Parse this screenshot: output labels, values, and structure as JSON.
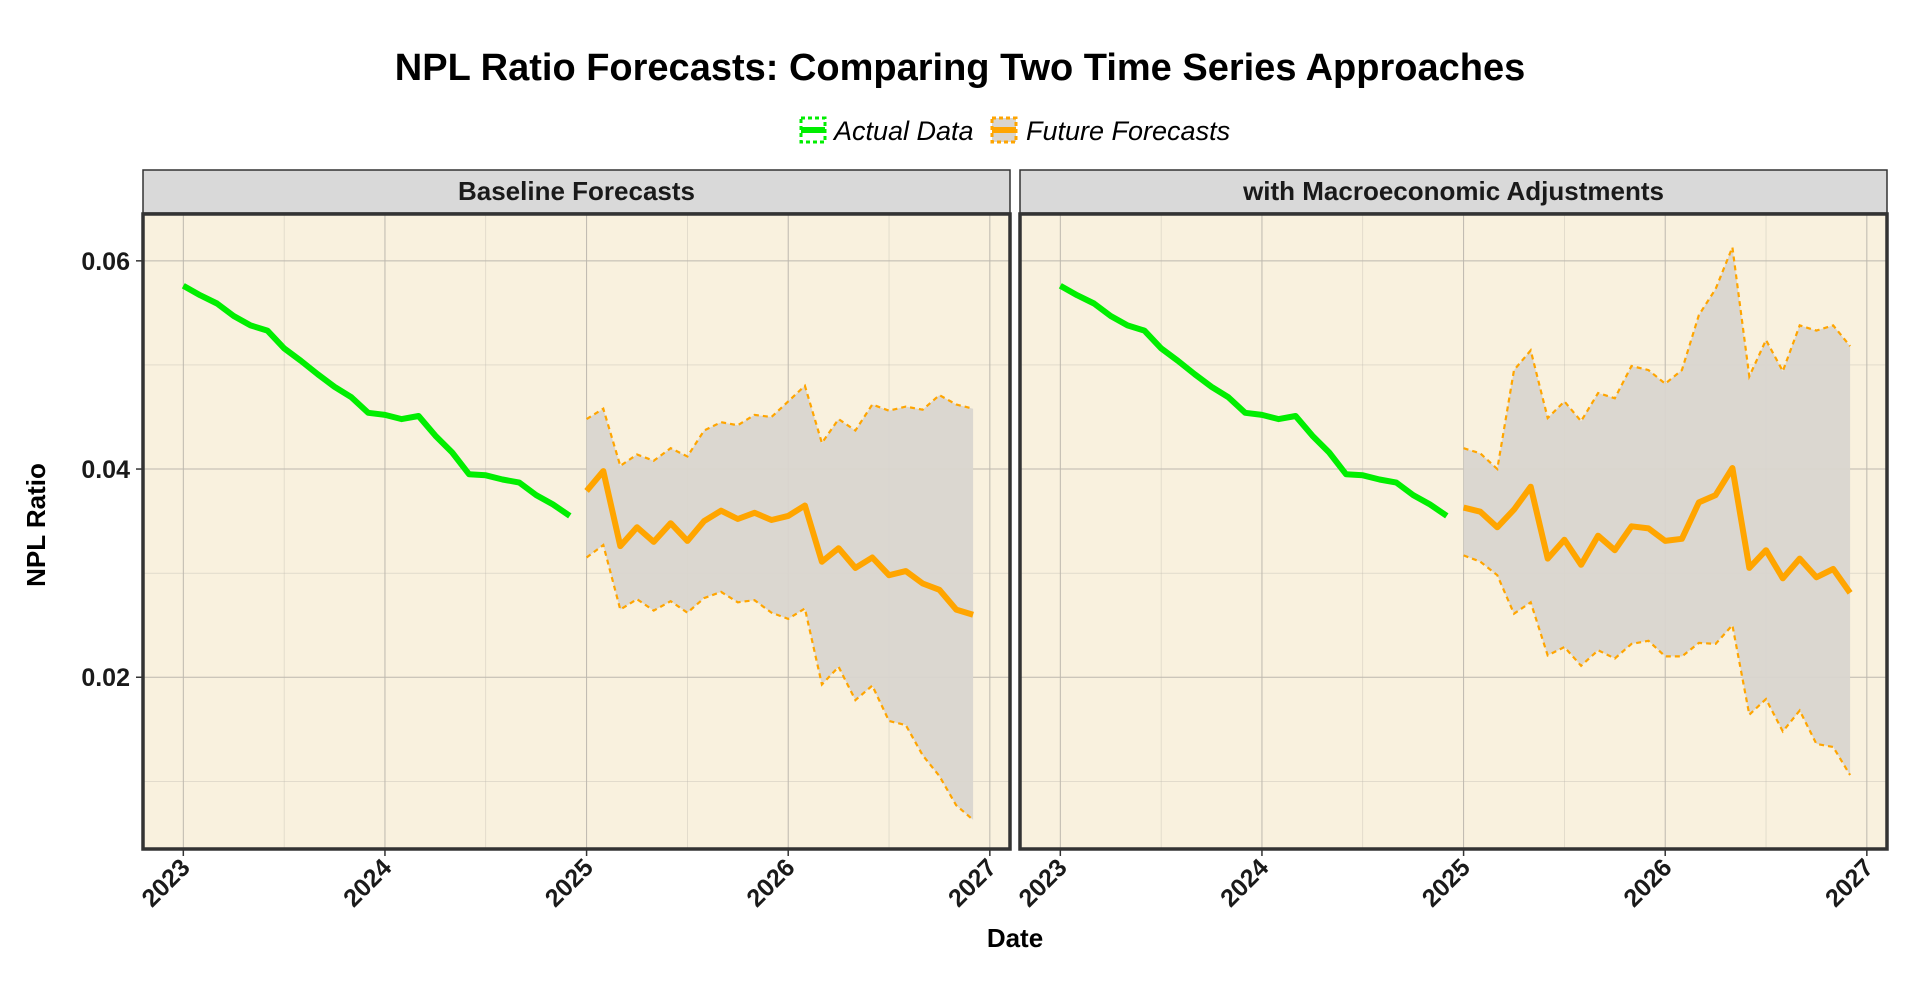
{
  "colors": {
    "actual": "#00EE00",
    "forecast": "#FFA500",
    "panel_bg": "#F9F1DE",
    "ribbon": "#D9D5CF",
    "strip_bg": "#D9D9D9",
    "grid": "#BDB8AE"
  },
  "chart_data": {
    "type": "line",
    "title": "NPL Ratio Forecasts: Comparing Two Time Series Approaches",
    "xlabel": "Date",
    "ylabel": "NPL Ratio",
    "xlim": [
      2022.8,
      2027.1
    ],
    "ylim": [
      0.0035,
      0.0645
    ],
    "x_ticks": [
      2023,
      2024,
      2025,
      2026,
      2027
    ],
    "y_ticks": [
      0.02,
      0.04,
      0.06
    ],
    "x_tick_labels": [
      "2023",
      "2024",
      "2025",
      "2026",
      "2027"
    ],
    "y_tick_labels": [
      "0.02",
      "0.04",
      "0.06"
    ],
    "grid": true,
    "legend_position": "top",
    "legend": [
      {
        "key": "actual",
        "label": "Actual Data"
      },
      {
        "key": "forecast",
        "label": "Future Forecasts"
      }
    ],
    "panels": [
      {
        "strip": "Baseline Forecasts",
        "actual": {
          "x": [
            2023.0,
            2023.083,
            2023.167,
            2023.25,
            2023.333,
            2023.417,
            2023.5,
            2023.583,
            2023.667,
            2023.75,
            2023.833,
            2023.917,
            2024.0,
            2024.083,
            2024.167,
            2024.25,
            2024.333,
            2024.417,
            2024.5,
            2024.583,
            2024.667,
            2024.75,
            2024.833,
            2024.917
          ],
          "y": [
            0.0576,
            0.0567,
            0.0559,
            0.0547,
            0.0538,
            0.0533,
            0.0516,
            0.0504,
            0.0491,
            0.0479,
            0.0469,
            0.0454,
            0.0452,
            0.0448,
            0.0451,
            0.0432,
            0.0416,
            0.0395,
            0.0394,
            0.039,
            0.0387,
            0.0375,
            0.0366,
            0.0355
          ]
        },
        "forecast": {
          "x": [
            2025.0,
            2025.083,
            2025.167,
            2025.25,
            2025.333,
            2025.417,
            2025.5,
            2025.583,
            2025.667,
            2025.75,
            2025.833,
            2025.917,
            2026.0,
            2026.083,
            2026.167,
            2026.25,
            2026.333,
            2026.417,
            2026.5,
            2026.583,
            2026.667,
            2026.75,
            2026.833,
            2026.917
          ],
          "y": [
            0.0379,
            0.0398,
            0.0326,
            0.0344,
            0.033,
            0.0348,
            0.0331,
            0.035,
            0.036,
            0.0352,
            0.0358,
            0.0351,
            0.0355,
            0.0365,
            0.0311,
            0.0324,
            0.0305,
            0.0315,
            0.0298,
            0.0302,
            0.029,
            0.0284,
            0.0265,
            0.026
          ],
          "lower": [
            0.0315,
            0.0327,
            0.0265,
            0.0275,
            0.0264,
            0.0273,
            0.0262,
            0.0276,
            0.0282,
            0.0272,
            0.0274,
            0.0262,
            0.0256,
            0.0266,
            0.0193,
            0.021,
            0.0178,
            0.0192,
            0.0158,
            0.0154,
            0.0125,
            0.0105,
            0.0077,
            0.0063
          ],
          "upper": [
            0.0448,
            0.0458,
            0.0403,
            0.0414,
            0.0408,
            0.042,
            0.0412,
            0.0437,
            0.0445,
            0.0442,
            0.0452,
            0.045,
            0.0465,
            0.048,
            0.0425,
            0.0448,
            0.0437,
            0.0462,
            0.0456,
            0.046,
            0.0457,
            0.0471,
            0.0462,
            0.0458
          ]
        }
      },
      {
        "strip": "with Macroeconomic Adjustments",
        "actual": {
          "x": [
            2023.0,
            2023.083,
            2023.167,
            2023.25,
            2023.333,
            2023.417,
            2023.5,
            2023.583,
            2023.667,
            2023.75,
            2023.833,
            2023.917,
            2024.0,
            2024.083,
            2024.167,
            2024.25,
            2024.333,
            2024.417,
            2024.5,
            2024.583,
            2024.667,
            2024.75,
            2024.833,
            2024.917
          ],
          "y": [
            0.0576,
            0.0567,
            0.0559,
            0.0547,
            0.0538,
            0.0533,
            0.0516,
            0.0504,
            0.0491,
            0.0479,
            0.0469,
            0.0454,
            0.0452,
            0.0448,
            0.0451,
            0.0432,
            0.0416,
            0.0395,
            0.0394,
            0.039,
            0.0387,
            0.0375,
            0.0366,
            0.0355
          ]
        },
        "forecast": {
          "x": [
            2025.0,
            2025.083,
            2025.167,
            2025.25,
            2025.333,
            2025.417,
            2025.5,
            2025.583,
            2025.667,
            2025.75,
            2025.833,
            2025.917,
            2026.0,
            2026.083,
            2026.167,
            2026.25,
            2026.333,
            2026.417,
            2026.5,
            2026.583,
            2026.667,
            2026.75,
            2026.833,
            2026.917
          ],
          "y": [
            0.0363,
            0.0359,
            0.0344,
            0.0361,
            0.0383,
            0.0314,
            0.0332,
            0.0308,
            0.0336,
            0.0322,
            0.0345,
            0.0343,
            0.0331,
            0.0333,
            0.0368,
            0.0375,
            0.0401,
            0.0305,
            0.0322,
            0.0295,
            0.0314,
            0.0296,
            0.0304,
            0.0281
          ],
          "lower": [
            0.0317,
            0.0311,
            0.0298,
            0.0261,
            0.0272,
            0.0221,
            0.0229,
            0.0211,
            0.0226,
            0.0218,
            0.0232,
            0.0235,
            0.022,
            0.022,
            0.0233,
            0.0232,
            0.025,
            0.0164,
            0.0179,
            0.0148,
            0.0168,
            0.0136,
            0.0133,
            0.0106
          ],
          "upper": [
            0.042,
            0.0415,
            0.04,
            0.0495,
            0.0514,
            0.0449,
            0.0465,
            0.0446,
            0.0473,
            0.0468,
            0.0499,
            0.0495,
            0.0482,
            0.0495,
            0.0548,
            0.0573,
            0.0613,
            0.0489,
            0.0524,
            0.0494,
            0.0538,
            0.0533,
            0.0538,
            0.0518
          ]
        }
      }
    ]
  }
}
